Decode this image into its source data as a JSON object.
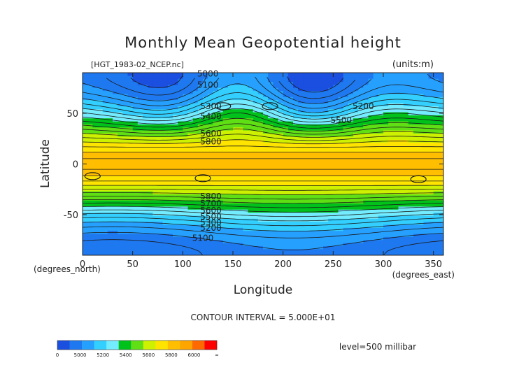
{
  "chart_data": {
    "type": "heatmap",
    "title": "Monthly Mean Geopotential height",
    "file_label": "[HGT_1983-02_NCEP.nc]",
    "units_label": "(units:m)",
    "xlabel": "Longitude",
    "ylabel": "Latitude",
    "x_unit_label": "(degrees_east)",
    "y_unit_label": "(degrees_north)",
    "xlim": [
      0,
      360
    ],
    "ylim": [
      -90,
      90
    ],
    "x_ticks": [
      0,
      50,
      100,
      150,
      200,
      250,
      300,
      350
    ],
    "y_ticks": [
      50,
      0,
      -50
    ],
    "contour_interval_text": "CONTOUR INTERVAL = 5.000E+01",
    "level_text": "level=500 millibar",
    "contour_labels": [
      {
        "text": "5000",
        "lon": 125,
        "lat": 89
      },
      {
        "text": "5100",
        "lon": 125,
        "lat": 78
      },
      {
        "text": "5100",
        "lon": 120,
        "lat": -73
      },
      {
        "text": "5200",
        "lon": 280,
        "lat": 57
      },
      {
        "text": "5500",
        "lon": 258,
        "lat": 43
      },
      {
        "text": "5300",
        "lon": 128,
        "lat": 57
      },
      {
        "text": "5400",
        "lon": 128,
        "lat": 47
      },
      {
        "text": "5600",
        "lon": 128,
        "lat": 30
      },
      {
        "text": "5800",
        "lon": 128,
        "lat": 22
      },
      {
        "text": "5800",
        "lon": 128,
        "lat": -32
      },
      {
        "text": "5700",
        "lon": 128,
        "lat": -39
      },
      {
        "text": "5600",
        "lon": 128,
        "lat": -46
      },
      {
        "text": "5500",
        "lon": 128,
        "lat": -52
      },
      {
        "text": "5300",
        "lon": 128,
        "lat": -58
      },
      {
        "text": "5200",
        "lon": 128,
        "lat": -63
      }
    ],
    "legend": {
      "bins": [
        {
          "color": "#1a4fe0",
          "value": 4900
        },
        {
          "color": "#1e78f0",
          "value": 5000
        },
        {
          "color": "#26a0ff",
          "value": 5100
        },
        {
          "color": "#33cfff",
          "value": 5200
        },
        {
          "color": "#74ecff",
          "value": 5300
        },
        {
          "color": "#00c21b",
          "value": 5400
        },
        {
          "color": "#5fdf14",
          "value": 5500
        },
        {
          "color": "#cdf100",
          "value": 5600
        },
        {
          "color": "#ffe400",
          "value": 5700
        },
        {
          "color": "#ffbf00",
          "value": 5800
        },
        {
          "color": "#ffa500",
          "value": 5900
        },
        {
          "color": "#ff6a00",
          "value": 6000
        },
        {
          "color": "#ff0000",
          "value": 6100
        }
      ],
      "tick_labels": [
        {
          "text": "0",
          "pos": 0
        },
        {
          "text": "5000",
          "pos": 2
        },
        {
          "text": "5200",
          "pos": 4
        },
        {
          "text": "5400",
          "pos": 6
        },
        {
          "text": "5600",
          "pos": 8
        },
        {
          "text": "5800",
          "pos": 10
        },
        {
          "text": "6000",
          "pos": 12
        },
        {
          "text": "∞",
          "pos": 14
        }
      ]
    },
    "colors": {
      "tropics": "#ffa500",
      "subtropic_yellow": "#ffe400",
      "mid_green": "#00c21b",
      "light_cyan": "#74ecff",
      "polar_blue": "#1e78f0"
    }
  }
}
